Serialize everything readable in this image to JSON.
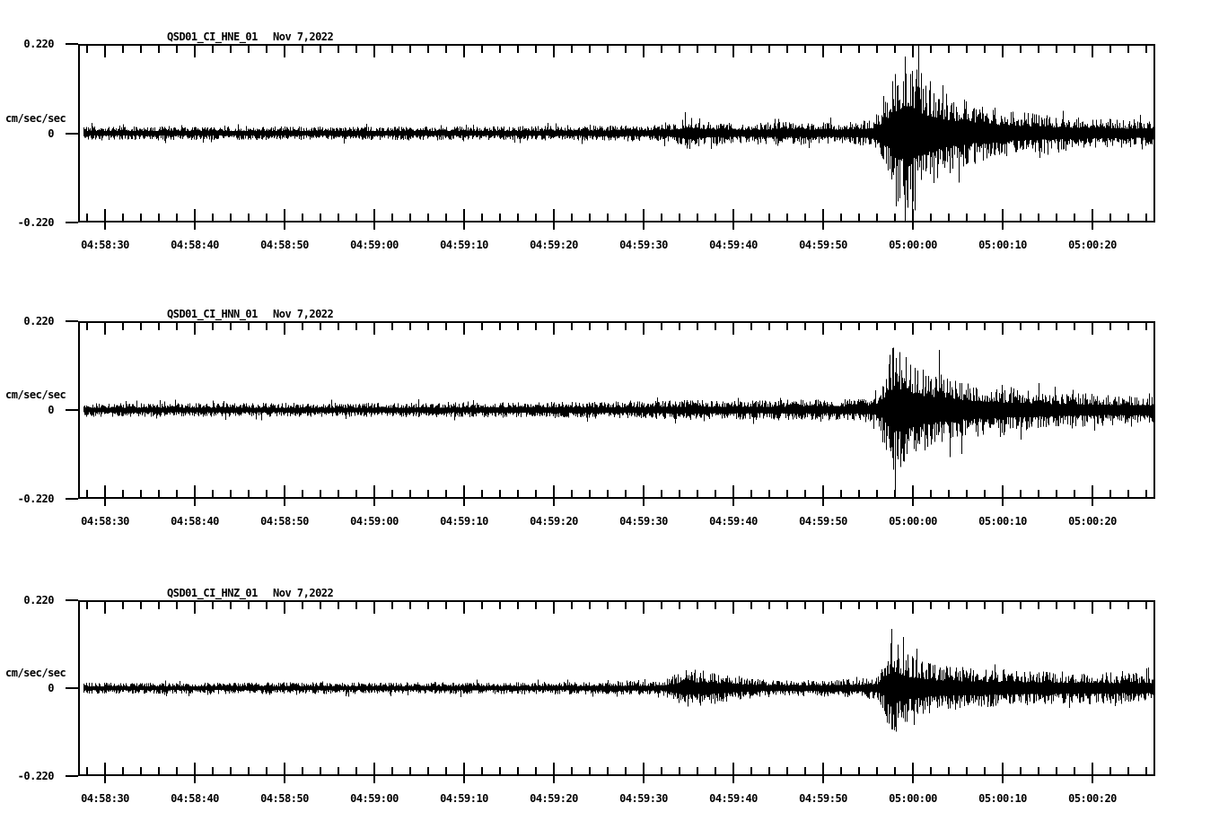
{
  "figure": {
    "background_color": "#ffffff",
    "foreground_color": "#000000"
  },
  "chart_data": [
    {
      "type": "line",
      "subtype": "seismogram",
      "title": "QSD01_CI_HNE_01",
      "date_label": "Nov 7,2022",
      "ylabel": "cm/sec/sec",
      "ylim": [
        -0.22,
        0.22
      ],
      "ytick_labels": [
        "0.220",
        "0",
        "-0.220"
      ],
      "xtick_labels": [
        "04:58:30",
        "04:58:40",
        "04:58:50",
        "04:59:00",
        "04:59:10",
        "04:59:20",
        "04:59:30",
        "04:59:40",
        "04:59:50",
        "05:00:00",
        "05:00:10",
        "05:00:20"
      ],
      "x_window_start": "04:58:27",
      "x_window_end": "05:00:27",
      "xtick_interval_seconds": 10,
      "minor_tick_seconds": 2,
      "grid": false,
      "legend": "none",
      "event_onset": "04:59:56",
      "event_peak": "04:59:59",
      "peak_amplitude": 0.22,
      "baseline_noise_amplitude": 0.017,
      "envelope_time_reference": "seconds after 04:58:30",
      "envelope_t_amp": [
        [
          -3,
          0.017
        ],
        [
          40,
          0.017
        ],
        [
          55,
          0.019
        ],
        [
          63,
          0.022
        ],
        [
          65,
          0.042
        ],
        [
          67,
          0.03
        ],
        [
          71,
          0.025
        ],
        [
          75,
          0.029
        ],
        [
          79,
          0.026
        ],
        [
          83,
          0.029
        ],
        [
          85.5,
          0.034
        ],
        [
          86.4,
          0.07
        ],
        [
          87.5,
          0.12
        ],
        [
          88.3,
          0.17
        ],
        [
          89.1,
          0.215
        ],
        [
          90,
          0.185
        ],
        [
          91.2,
          0.145
        ],
        [
          92.5,
          0.12
        ],
        [
          94,
          0.1
        ],
        [
          96,
          0.082
        ],
        [
          98.5,
          0.066
        ],
        [
          101,
          0.056
        ],
        [
          105,
          0.047
        ],
        [
          109,
          0.041
        ],
        [
          113,
          0.036
        ],
        [
          117,
          0.033
        ]
      ],
      "spikes_t_up_down": [
        [
          88.3,
          0.12,
          -0.17
        ],
        [
          89.1,
          0.19,
          -0.3
        ],
        [
          89.9,
          0.155,
          -0.19
        ],
        [
          91.9,
          0.13,
          -0.1
        ]
      ]
    },
    {
      "type": "line",
      "subtype": "seismogram",
      "title": "QSD01_CI_HNN_01",
      "date_label": "Nov 7,2022",
      "ylabel": "cm/sec/sec",
      "ylim": [
        -0.22,
        0.22
      ],
      "ytick_labels": [
        "0.220",
        "0",
        "-0.220"
      ],
      "xtick_labels": [
        "04:58:30",
        "04:58:40",
        "04:58:50",
        "04:59:00",
        "04:59:10",
        "04:59:20",
        "04:59:30",
        "04:59:40",
        "04:59:50",
        "05:00:00",
        "05:00:10",
        "05:00:20"
      ],
      "x_window_start": "04:58:27",
      "x_window_end": "05:00:27",
      "xtick_interval_seconds": 10,
      "minor_tick_seconds": 2,
      "grid": false,
      "legend": "none",
      "event_onset": "04:59:56",
      "event_peak": "04:59:58",
      "peak_amplitude": 0.18,
      "baseline_noise_amplitude": 0.017,
      "envelope_time_reference": "seconds after 04:58:30",
      "envelope_t_amp": [
        [
          -3,
          0.017
        ],
        [
          30,
          0.018
        ],
        [
          50,
          0.02
        ],
        [
          60,
          0.022
        ],
        [
          65,
          0.026
        ],
        [
          70,
          0.024
        ],
        [
          75,
          0.026
        ],
        [
          80,
          0.026
        ],
        [
          84,
          0.028
        ],
        [
          85.8,
          0.035
        ],
        [
          86.5,
          0.06
        ],
        [
          87.2,
          0.12
        ],
        [
          87.8,
          0.175
        ],
        [
          88.6,
          0.15
        ],
        [
          90,
          0.125
        ],
        [
          91.5,
          0.105
        ],
        [
          93,
          0.09
        ],
        [
          95,
          0.078
        ],
        [
          97.5,
          0.066
        ],
        [
          100,
          0.058
        ],
        [
          103,
          0.05
        ],
        [
          107,
          0.044
        ],
        [
          111,
          0.04
        ],
        [
          117,
          0.035
        ]
      ],
      "spikes_t_up_down": [
        [
          87.7,
          0.155,
          -0.12
        ],
        [
          88.0,
          0.09,
          -0.215
        ],
        [
          92.9,
          0.15,
          -0.055
        ]
      ]
    },
    {
      "type": "line",
      "subtype": "seismogram",
      "title": "QSD01_CI_HNZ_01",
      "date_label": "Nov 7,2022",
      "ylabel": "cm/sec/sec",
      "ylim": [
        -0.22,
        0.22
      ],
      "ytick_labels": [
        "0.220",
        "0",
        "-0.220"
      ],
      "xtick_labels": [
        "04:58:30",
        "04:58:40",
        "04:58:50",
        "04:59:00",
        "04:59:10",
        "04:59:20",
        "04:59:30",
        "04:59:40",
        "04:59:50",
        "05:00:00",
        "05:00:10",
        "05:00:20"
      ],
      "x_window_start": "04:58:27",
      "x_window_end": "05:00:27",
      "xtick_interval_seconds": 10,
      "minor_tick_seconds": 2,
      "grid": false,
      "legend": "none",
      "pre_event_disturbance": {
        "start": "04:59:33",
        "end": "04:59:42",
        "amplitude": 0.05
      },
      "event_onset": "04:59:56",
      "event_peak": "04:59:58",
      "peak_amplitude": 0.15,
      "baseline_noise_amplitude": 0.014,
      "envelope_time_reference": "seconds after 04:58:30",
      "envelope_t_amp": [
        [
          -3,
          0.014
        ],
        [
          40,
          0.015
        ],
        [
          55,
          0.016
        ],
        [
          62,
          0.018
        ],
        [
          63.5,
          0.035
        ],
        [
          65,
          0.048
        ],
        [
          67,
          0.044
        ],
        [
          69,
          0.036
        ],
        [
          71,
          0.028
        ],
        [
          73,
          0.022
        ],
        [
          76,
          0.02
        ],
        [
          80,
          0.022
        ],
        [
          84,
          0.024
        ],
        [
          86,
          0.03
        ],
        [
          86.8,
          0.06
        ],
        [
          87.6,
          0.145
        ],
        [
          88.4,
          0.105
        ],
        [
          89.5,
          0.085
        ],
        [
          91,
          0.07
        ],
        [
          93,
          0.06
        ],
        [
          95.5,
          0.053
        ],
        [
          98,
          0.049
        ],
        [
          102,
          0.046
        ],
        [
          106,
          0.043
        ],
        [
          110,
          0.041
        ],
        [
          117,
          0.038
        ]
      ],
      "spikes_t_up_down": [
        [
          87.6,
          0.15,
          -0.055
        ],
        [
          88.3,
          0.11,
          -0.075
        ],
        [
          90.4,
          0.1,
          -0.06
        ]
      ]
    }
  ]
}
